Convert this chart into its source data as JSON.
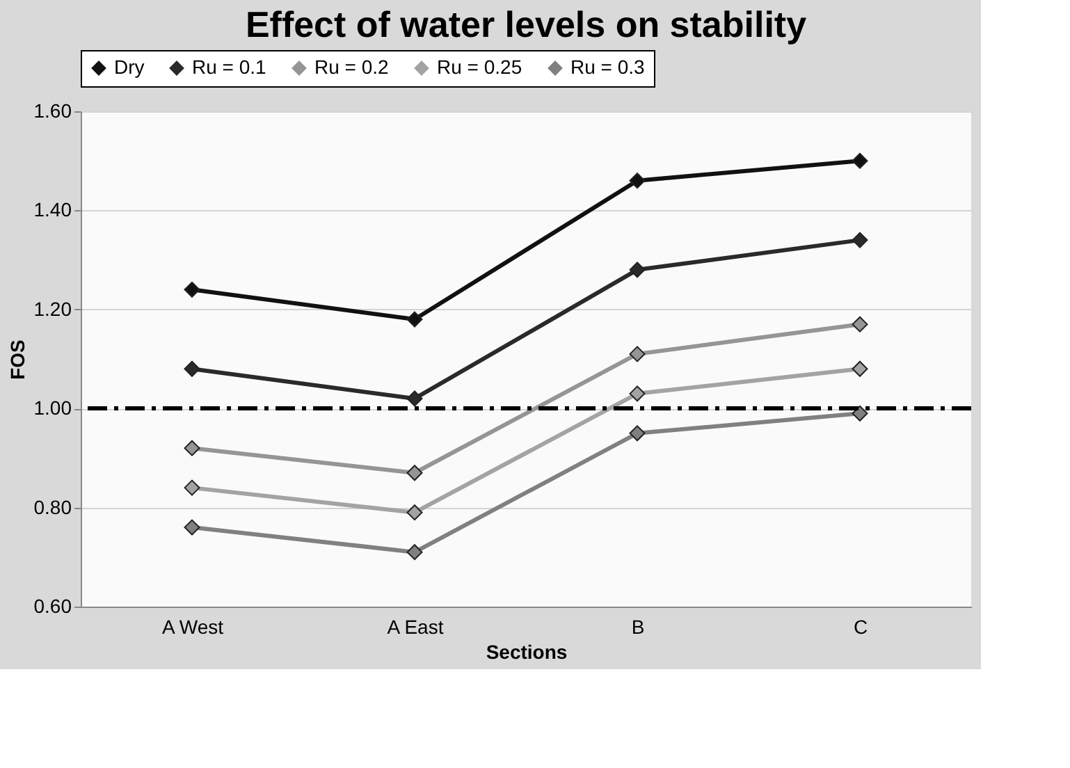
{
  "chart_data": {
    "type": "line",
    "title": "Effect of water levels on stability",
    "xlabel": "Sections",
    "ylabel": "FOS",
    "categories": [
      "A West",
      "A East",
      "B",
      "C"
    ],
    "series": [
      {
        "name": "Dry",
        "color": "#111111",
        "values": [
          1.24,
          1.18,
          1.46,
          1.5
        ]
      },
      {
        "name": "Ru = 0.1",
        "color": "#2a2a2a",
        "values": [
          1.08,
          1.02,
          1.28,
          1.34
        ]
      },
      {
        "name": "Ru = 0.2",
        "color": "#959595",
        "values": [
          0.92,
          0.87,
          1.11,
          1.17
        ]
      },
      {
        "name": "Ru = 0.25",
        "color": "#a3a3a3",
        "values": [
          0.84,
          0.79,
          1.03,
          1.08
        ]
      },
      {
        "name": "Ru = 0.3",
        "color": "#808080",
        "values": [
          0.76,
          0.71,
          0.95,
          0.99
        ]
      }
    ],
    "ylim": [
      0.6,
      1.6
    ],
    "yticks": [
      {
        "value": 0.6,
        "label": "0.60"
      },
      {
        "value": 0.8,
        "label": "0.80"
      },
      {
        "value": 1.0,
        "label": "1.00"
      },
      {
        "value": 1.2,
        "label": "1.20"
      },
      {
        "value": 1.4,
        "label": "1.40"
      },
      {
        "value": 1.6,
        "label": "1.60"
      }
    ],
    "ref_lines": [
      {
        "axis": "y",
        "value": 1.0,
        "color": "#000000",
        "line_style": "dashdot"
      }
    ],
    "grid": "y",
    "legend": "top",
    "marker": "diamond",
    "line_style": "solid"
  }
}
